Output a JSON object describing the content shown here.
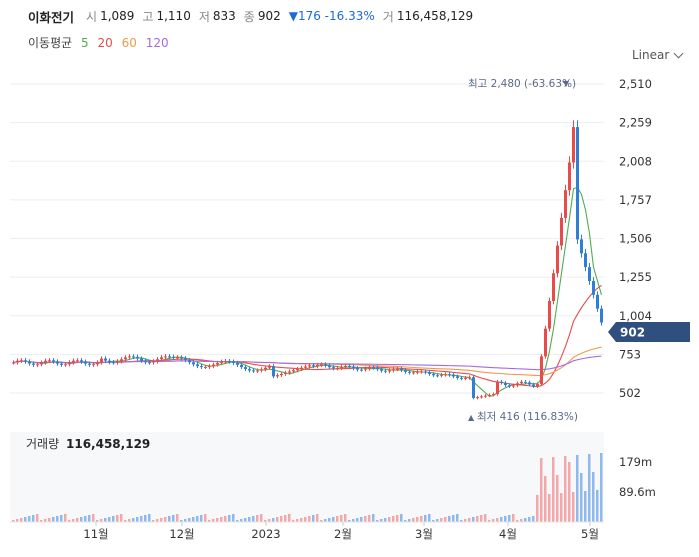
{
  "header": {
    "name": "이화전기",
    "open_label": "시",
    "open": "1,089",
    "high_label": "고",
    "high": "1,110",
    "low_label": "저",
    "low": "833",
    "close_label": "종",
    "close": "902",
    "change": "▼176 -16.33%",
    "volume_label": "거",
    "volume": "116,458,129"
  },
  "ma_legend": {
    "title": "이동평균",
    "items": [
      {
        "label": "5",
        "color": "#4caf50"
      },
      {
        "label": "20",
        "color": "#e94b4b"
      },
      {
        "label": "60",
        "color": "#f09a4a"
      },
      {
        "label": "120",
        "color": "#a46be0"
      }
    ]
  },
  "scale_selector": "Linear",
  "chart_data": {
    "type": "candlestick",
    "price_axis": {
      "ticks": [
        "2,510",
        "2,259",
        "2,008",
        "1,757",
        "1,506",
        "1,255",
        "1,004",
        "753",
        "502"
      ],
      "range": [
        400,
        2530
      ],
      "last_price": "902"
    },
    "x_ticks": [
      "11월",
      "12월",
      "2023",
      "2월",
      "3월",
      "4월",
      "5월"
    ],
    "annotations": {
      "high": "최고 2,480 (-63.63%)",
      "low": "최저 416 (116.83%)"
    },
    "volume": {
      "title": "거래량",
      "value": "116,458,129",
      "ticks": [
        "179m",
        "89.6m"
      ]
    },
    "colors": {
      "up": "#e94b4b",
      "down": "#2f7fd6",
      "ma5": "#4caf50",
      "ma20": "#e94b4b",
      "ma60": "#f09a4a",
      "ma120": "#a46be0",
      "price_tag": "#2f4f7f"
    }
  }
}
